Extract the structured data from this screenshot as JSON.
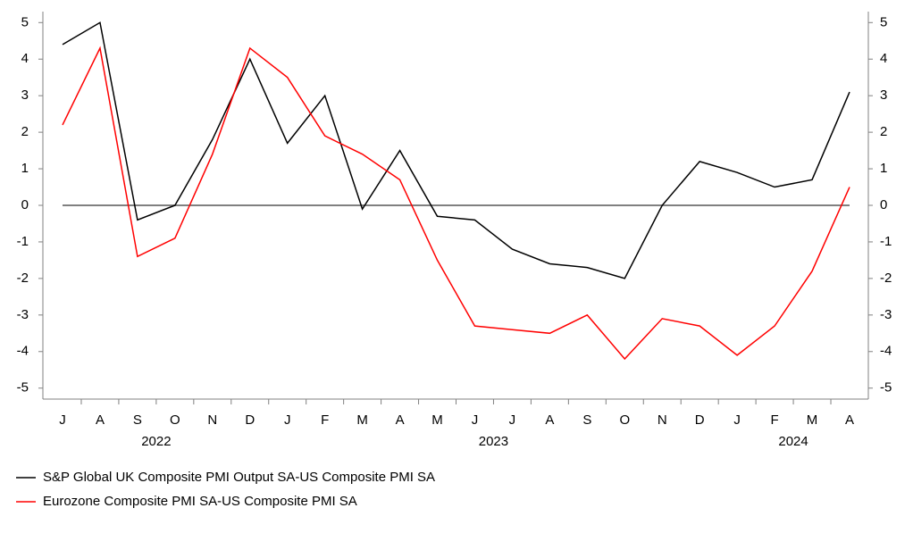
{
  "chart_data": {
    "type": "line",
    "categories": [
      "J",
      "A",
      "S",
      "O",
      "N",
      "D",
      "J",
      "F",
      "M",
      "A",
      "M",
      "J",
      "J",
      "A",
      "S",
      "O",
      "N",
      "D",
      "J",
      "F",
      "M",
      "A"
    ],
    "years": [
      {
        "label": "2022",
        "months": 6
      },
      {
        "label": "2023",
        "months": 12
      },
      {
        "label": "2024",
        "months": 4
      }
    ],
    "series": [
      {
        "name": "S&P Global UK Composite PMI Output SA-US Composite PMI SA",
        "color": "#000000",
        "values": [
          4.4,
          5.0,
          -0.4,
          0.0,
          1.8,
          4.0,
          1.7,
          3.0,
          -0.1,
          1.5,
          -0.3,
          -0.4,
          -1.2,
          -1.6,
          -1.7,
          -2.0,
          0.0,
          1.2,
          0.9,
          0.5,
          0.7,
          3.1
        ]
      },
      {
        "name": "Eurozone Composite PMI SA-US Composite PMI SA",
        "color": "#ff0000",
        "values": [
          2.2,
          4.3,
          -1.4,
          -0.9,
          1.4,
          4.3,
          3.5,
          1.9,
          1.4,
          0.7,
          -1.5,
          -3.3,
          -3.4,
          -3.5,
          -3.0,
          -4.2,
          -3.1,
          -3.3,
          -4.1,
          -3.3,
          -1.8,
          0.5
        ]
      }
    ],
    "ylim": [
      -5.3,
      5.3
    ],
    "yticks": [
      -5,
      -4,
      -3,
      -2,
      -1,
      0,
      1,
      2,
      3,
      4,
      5
    ],
    "y2lim": [
      -5.3,
      5.3
    ],
    "y2ticks": [
      -5,
      -4,
      -3,
      -2,
      -1,
      0,
      1,
      2,
      3,
      4,
      5
    ]
  }
}
